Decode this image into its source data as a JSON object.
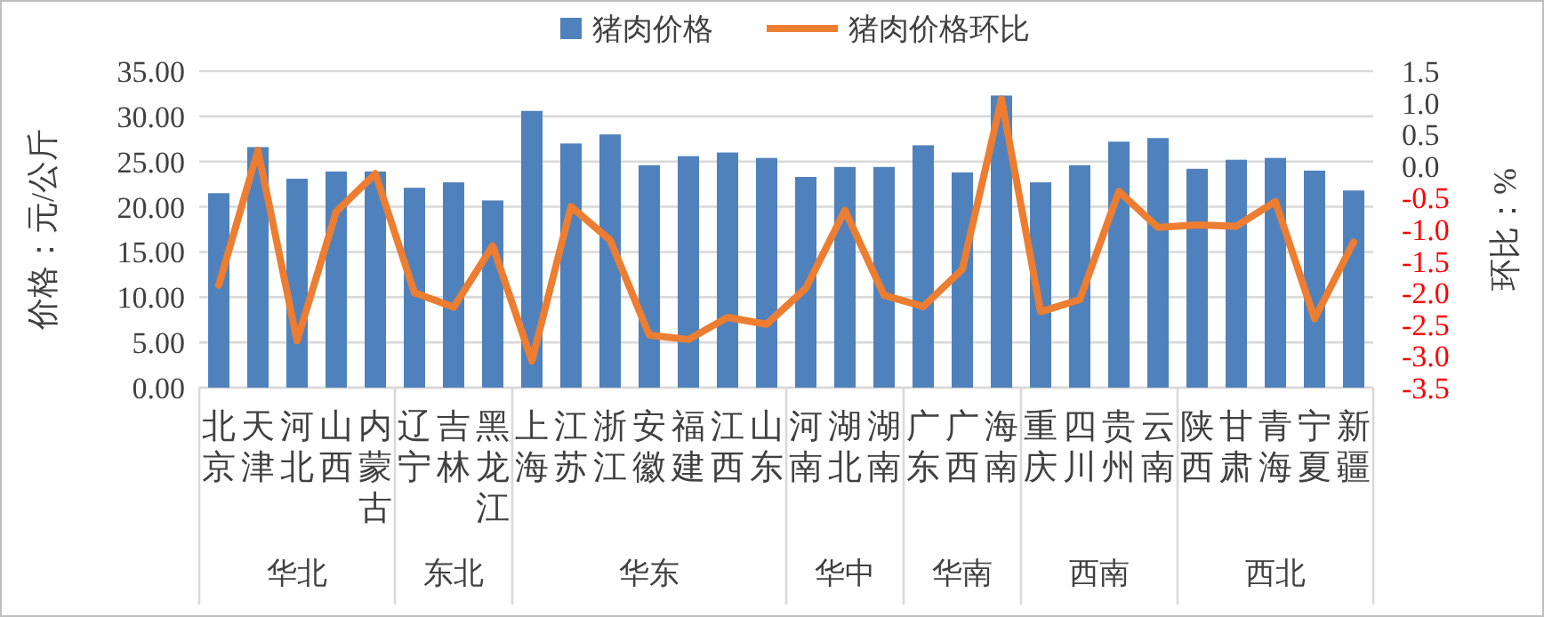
{
  "chart_data": {
    "type": "bar",
    "categories": [
      "北京",
      "天津",
      "河北",
      "山西",
      "内蒙古",
      "辽宁",
      "吉林",
      "黑龙江",
      "上海",
      "江苏",
      "浙江",
      "安徽",
      "福建",
      "江西",
      "山东",
      "河南",
      "湖北",
      "湖南",
      "广东",
      "广西",
      "海南",
      "重庆",
      "四川",
      "贵州",
      "云南",
      "陕西",
      "甘肃",
      "青海",
      "宁夏",
      "新疆"
    ],
    "series": [
      {
        "name": "猪肉价格",
        "color": "#4f81bd",
        "values": [
          21.5,
          26.6,
          23.1,
          23.9,
          23.9,
          22.1,
          22.7,
          20.7,
          30.6,
          27.0,
          28.0,
          24.6,
          25.6,
          26.0,
          25.4,
          23.3,
          24.4,
          24.4,
          26.8,
          23.8,
          32.3,
          22.7,
          24.6,
          27.2,
          27.6,
          24.2,
          25.2,
          25.4,
          24.0,
          21.8
        ]
      },
      {
        "name": "猪肉价格环比",
        "type": "line",
        "axis": "y2",
        "color": "#ed7d31",
        "values": [
          -1.88,
          0.25,
          -2.76,
          -0.72,
          -0.12,
          -2.0,
          -2.23,
          -1.26,
          -3.08,
          -0.64,
          -1.17,
          -2.67,
          -2.74,
          -2.39,
          -2.5,
          -1.93,
          -0.7,
          -2.04,
          -2.22,
          -1.63,
          1.06,
          -2.3,
          -2.11,
          -0.4,
          -0.97,
          -0.93,
          -0.95,
          -0.56,
          -2.41,
          -1.2
        ]
      }
    ],
    "ylabel": "价格：元/公斤",
    "y2label": "环比：%",
    "ylim": [
      0,
      35
    ],
    "yticks": [
      {
        "value": 0,
        "label": "0.00"
      },
      {
        "value": 5,
        "label": "5.00"
      },
      {
        "value": 10,
        "label": "10.00"
      },
      {
        "value": 15,
        "label": "15.00"
      },
      {
        "value": 20,
        "label": "20.00"
      },
      {
        "value": 25,
        "label": "25.00"
      },
      {
        "value": 30,
        "label": "30.00"
      },
      {
        "value": 35,
        "label": "35.00"
      }
    ],
    "y2lim": [
      -3.5,
      1.5
    ],
    "y2ticks": [
      {
        "value": -3.5,
        "label": "-3.5"
      },
      {
        "value": -3,
        "label": "-3.0"
      },
      {
        "value": -2.5,
        "label": "-2.5"
      },
      {
        "value": -2,
        "label": "-2.0"
      },
      {
        "value": -1.5,
        "label": "-1.5"
      },
      {
        "value": -1,
        "label": "-1.0"
      },
      {
        "value": -0.5,
        "label": "-0.5"
      },
      {
        "value": 0,
        "label": "0.0"
      },
      {
        "value": 0.5,
        "label": "0.5"
      },
      {
        "value": 1,
        "label": "1.0"
      },
      {
        "value": 1.5,
        "label": "1.5"
      }
    ],
    "grid": "y",
    "legend": "top",
    "marker": "none",
    "line_style": "solid",
    "annotations": [
      "华北",
      "东北",
      "华东",
      "华中",
      "华南",
      "西南",
      "西北"
    ]
  }
}
